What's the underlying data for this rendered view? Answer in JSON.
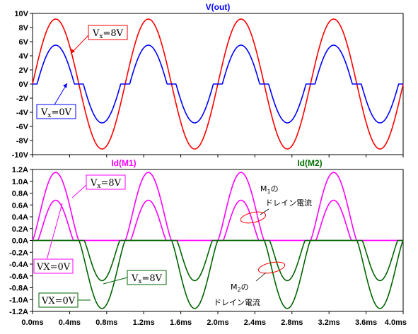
{
  "chart_data": [
    {
      "type": "line",
      "title": "V(out)",
      "title_color": "#0000ff",
      "xlabel": "",
      "ylabel": "",
      "xlim": [
        0,
        4.0
      ],
      "ylim": [
        -10,
        10
      ],
      "x_ticks": [
        "0.0ms",
        "0.4ms",
        "0.8ms",
        "1.2ms",
        "1.6ms",
        "2.0ms",
        "2.4ms",
        "2.8ms",
        "3.2ms",
        "3.6ms",
        "4.0ms"
      ],
      "y_ticks": [
        "10V",
        "8V",
        "6V",
        "4V",
        "2V",
        "0V",
        "-2V",
        "-4V",
        "-6V",
        "-8V",
        "-10V"
      ],
      "grid": false,
      "series": [
        {
          "color": "#ff0000",
          "period_ms": 1.0,
          "amplitude": 9.2,
          "deadband": 0
        },
        {
          "color": "#0000ff",
          "period_ms": 1.0,
          "amplitude": 5.5,
          "deadband": 0.3
        }
      ],
      "annotations": [
        {
          "text_main": "V",
          "text_sub": "x",
          "text_rest": "=8V",
          "color": "#ff0000"
        },
        {
          "text_main": "V",
          "text_sub": "x",
          "text_rest": "=0V",
          "color": "#0000ff"
        }
      ]
    },
    {
      "type": "line",
      "title_left": "Id(M1)",
      "title_left_color": "#ff00ff",
      "title_right": "Id(M2)",
      "title_right_color": "#007000",
      "xlabel": "",
      "ylabel": "",
      "xlim": [
        0,
        4.0
      ],
      "ylim": [
        -1.2,
        1.2
      ],
      "x_ticks": [
        "0.0ms",
        "0.4ms",
        "0.8ms",
        "1.2ms",
        "1.6ms",
        "2.0ms",
        "2.4ms",
        "2.8ms",
        "3.2ms",
        "3.6ms",
        "4.0ms"
      ],
      "y_ticks": [
        "1.2A",
        "1.0A",
        "0.8A",
        "0.6A",
        "0.4A",
        "0.2A",
        "0.0A",
        "-0.2A",
        "-0.4A",
        "-0.6A",
        "-0.8A",
        "-1.0A",
        "-1.2A"
      ],
      "grid": false,
      "series": [
        {
          "color": "#ff00ff",
          "period_ms": 1.0,
          "peak": 1.15,
          "polarity": 1,
          "deadband": 0
        },
        {
          "color": "#ff00ff",
          "period_ms": 1.0,
          "peak": 0.68,
          "polarity": 1,
          "deadband": 0.35
        },
        {
          "color": "#006400",
          "period_ms": 1.0,
          "peak": 1.15,
          "polarity": -1,
          "deadband": 0
        },
        {
          "color": "#006400",
          "period_ms": 1.0,
          "peak": 0.68,
          "polarity": -1,
          "deadband": 0.35
        }
      ],
      "annotations": [
        {
          "text_main": "V",
          "text_sub": "x",
          "text_rest": "=8V",
          "color": "#ff00ff"
        },
        {
          "text_main": "VX=0V",
          "text_sub": "",
          "text_rest": "",
          "color": "#ff00ff"
        },
        {
          "text_main": "V",
          "text_sub": "x",
          "text_rest": "=8V",
          "color": "#006400"
        },
        {
          "text_main": "VX=0V",
          "text_sub": "",
          "text_rest": "",
          "color": "#006400"
        }
      ],
      "notes": [
        {
          "line1_main": "M",
          "line1_sub": "1",
          "line1_rest": "の",
          "line2": "ドレイン電流"
        },
        {
          "line1_main": "M",
          "line1_sub": "2",
          "line1_rest": "の",
          "line2": "ドレイン電流"
        }
      ]
    }
  ]
}
